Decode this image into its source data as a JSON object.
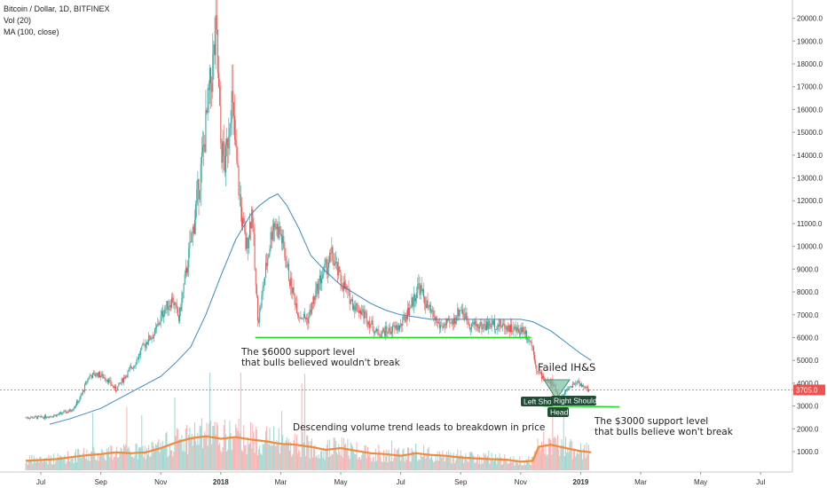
{
  "legend": {
    "line1": "Bitcoin / Dollar, 1D, BITFINEX",
    "line2": "Vol (20)",
    "line3": "MA (100, close)"
  },
  "price_tag": "3705.0",
  "colors": {
    "up": "#26a69a",
    "down": "#ef5350",
    "ma": "#3a8cbf",
    "support": "#22dd22",
    "vol_ma": "#f08a3c",
    "failed": "#ef5350",
    "hs_fill": "#77bfa4",
    "label_bg": "#1f4d36"
  },
  "chart_data": {
    "type": "candlestick",
    "title": "Bitcoin / Dollar, 1D, BITFINEX",
    "y_ticks": [
      1000,
      2000,
      3000,
      4000,
      5000,
      6000,
      7000,
      8000,
      9000,
      10000,
      11000,
      12000,
      13000,
      14000,
      15000,
      16000,
      17000,
      18000,
      19000,
      20000
    ],
    "y_tick_labels": [
      "1000.0",
      "2000.0",
      "3000.0",
      "4000.0",
      "5000.0",
      "6000.0",
      "7000.0",
      "8000.0",
      "9000.0",
      "10000.0",
      "11000.0",
      "12000.0",
      "13000.0",
      "14000.0",
      "15000.0",
      "16000.0",
      "17000.0",
      "18000.0",
      "19000.0",
      "20000.0"
    ],
    "x_ticks": [
      {
        "label": "Jul",
        "month": 0
      },
      {
        "label": "Sep",
        "month": 2
      },
      {
        "label": "Nov",
        "month": 4
      },
      {
        "label": "2018",
        "month": 6,
        "year": true
      },
      {
        "label": "Mar",
        "month": 8
      },
      {
        "label": "May",
        "month": 10
      },
      {
        "label": "Jul",
        "month": 12
      },
      {
        "label": "Sep",
        "month": 14
      },
      {
        "label": "Nov",
        "month": 16
      },
      {
        "label": "2019",
        "month": 18,
        "year": true
      },
      {
        "label": "Mar",
        "month": 20
      },
      {
        "label": "May",
        "month": 22
      },
      {
        "label": "Jul",
        "month": 24
      }
    ],
    "price_path": [
      [
        -0.5,
        2500
      ],
      [
        0,
        2500
      ],
      [
        0.5,
        2600
      ],
      [
        1,
        2800
      ],
      [
        1.3,
        3300
      ],
      [
        1.6,
        4300
      ],
      [
        1.9,
        4400
      ],
      [
        2.2,
        4200
      ],
      [
        2.5,
        3700
      ],
      [
        2.8,
        4300
      ],
      [
        3.1,
        4800
      ],
      [
        3.5,
        5800
      ],
      [
        3.8,
        6200
      ],
      [
        4.1,
        7200
      ],
      [
        4.4,
        7700
      ],
      [
        4.6,
        6800
      ],
      [
        4.8,
        8500
      ],
      [
        5.1,
        11000
      ],
      [
        5.4,
        14000
      ],
      [
        5.6,
        16500
      ],
      [
        5.85,
        19200
      ],
      [
        6.0,
        14500
      ],
      [
        6.15,
        13500
      ],
      [
        6.35,
        16700
      ],
      [
        6.5,
        14000
      ],
      [
        6.7,
        11200
      ],
      [
        6.85,
        9900
      ],
      [
        7.05,
        11700
      ],
      [
        7.15,
        8500
      ],
      [
        7.25,
        6700
      ],
      [
        7.5,
        9000
      ],
      [
        7.75,
        11100
      ],
      [
        8.0,
        10500
      ],
      [
        8.3,
        8500
      ],
      [
        8.6,
        7000
      ],
      [
        8.9,
        6800
      ],
      [
        9.3,
        8500
      ],
      [
        9.7,
        9600
      ],
      [
        10.0,
        8500
      ],
      [
        10.4,
        7500
      ],
      [
        10.8,
        7000
      ],
      [
        11.2,
        6200
      ],
      [
        11.6,
        6300
      ],
      [
        12.0,
        6500
      ],
      [
        12.4,
        7600
      ],
      [
        12.6,
        8300
      ],
      [
        12.9,
        7300
      ],
      [
        13.3,
        6500
      ],
      [
        13.7,
        6600
      ],
      [
        14.0,
        7300
      ],
      [
        14.3,
        6600
      ],
      [
        14.7,
        6500
      ],
      [
        15.1,
        6600
      ],
      [
        15.5,
        6500
      ],
      [
        15.9,
        6300
      ],
      [
        16.1,
        6400
      ],
      [
        16.4,
        5600
      ],
      [
        16.55,
        4500
      ],
      [
        16.8,
        4200
      ],
      [
        17.1,
        3900
      ],
      [
        17.3,
        3300
      ],
      [
        17.6,
        3800
      ],
      [
        17.9,
        4100
      ],
      [
        18.1,
        3800
      ],
      [
        18.3,
        3705
      ]
    ],
    "ma_path": [
      [
        0.3,
        2200
      ],
      [
        1,
        2450
      ],
      [
        2,
        2900
      ],
      [
        3,
        3600
      ],
      [
        4,
        4300
      ],
      [
        4.5,
        4900
      ],
      [
        5,
        5600
      ],
      [
        5.5,
        7000
      ],
      [
        6,
        8700
      ],
      [
        6.5,
        10300
      ],
      [
        7,
        11400
      ],
      [
        7.3,
        11800
      ],
      [
        7.6,
        12100
      ],
      [
        7.9,
        12300
      ],
      [
        8.2,
        11800
      ],
      [
        8.6,
        10800
      ],
      [
        9,
        9600
      ],
      [
        9.5,
        8900
      ],
      [
        10,
        8300
      ],
      [
        10.5,
        7900
      ],
      [
        11,
        7500
      ],
      [
        11.5,
        7200
      ],
      [
        12,
        7000
      ],
      [
        12.5,
        6900
      ],
      [
        13,
        6800
      ],
      [
        13.5,
        6800
      ],
      [
        14,
        6800
      ],
      [
        14.5,
        6800
      ],
      [
        15,
        6800
      ],
      [
        15.5,
        6800
      ],
      [
        16,
        6800
      ],
      [
        16.4,
        6700
      ],
      [
        17,
        6300
      ],
      [
        17.5,
        5800
      ],
      [
        18.0,
        5300
      ],
      [
        18.35,
        5000
      ]
    ],
    "volume_ma_path": [
      [
        -0.5,
        0.22
      ],
      [
        0.5,
        0.26
      ],
      [
        1.5,
        0.35
      ],
      [
        2,
        0.38
      ],
      [
        2.5,
        0.42
      ],
      [
        3,
        0.4
      ],
      [
        3.5,
        0.42
      ],
      [
        4,
        0.52
      ],
      [
        4.5,
        0.65
      ],
      [
        5,
        0.75
      ],
      [
        5.5,
        0.8
      ],
      [
        6,
        0.74
      ],
      [
        6.5,
        0.78
      ],
      [
        7,
        0.72
      ],
      [
        7.5,
        0.68
      ],
      [
        8,
        0.62
      ],
      [
        8.5,
        0.6
      ],
      [
        9,
        0.55
      ],
      [
        9.5,
        0.48
      ],
      [
        10,
        0.52
      ],
      [
        10.5,
        0.46
      ],
      [
        11,
        0.4
      ],
      [
        11.5,
        0.38
      ],
      [
        12,
        0.34
      ],
      [
        12.5,
        0.4
      ],
      [
        13,
        0.36
      ],
      [
        13.5,
        0.34
      ],
      [
        14,
        0.3
      ],
      [
        14.5,
        0.28
      ],
      [
        15,
        0.26
      ],
      [
        15.5,
        0.25
      ],
      [
        16,
        0.2
      ],
      [
        16.4,
        0.22
      ],
      [
        16.6,
        0.55
      ],
      [
        17,
        0.6
      ],
      [
        17.5,
        0.52
      ],
      [
        18,
        0.45
      ],
      [
        18.35,
        0.42
      ]
    ],
    "current_price": 3705,
    "annotations": {
      "support_6000": {
        "label_line1": "The $6000 support level",
        "label_line2": "that bulls believed wouldn't break",
        "price": 6000,
        "from_month": 7.15,
        "to_month": 16.35
      },
      "support_3000": {
        "label_line1": "The $3000 support level",
        "label_line2": "that bulls believe won't break",
        "price": 3000,
        "from_month": 16.75,
        "to_month": 19.3
      },
      "volume_note": "Descending volume trend leads to breakdown in price",
      "failed_hs": "Failed IH&S",
      "left_shoulder": "Left Sho",
      "right_shoulder": "Right Shoulder",
      "head": "Head"
    }
  }
}
